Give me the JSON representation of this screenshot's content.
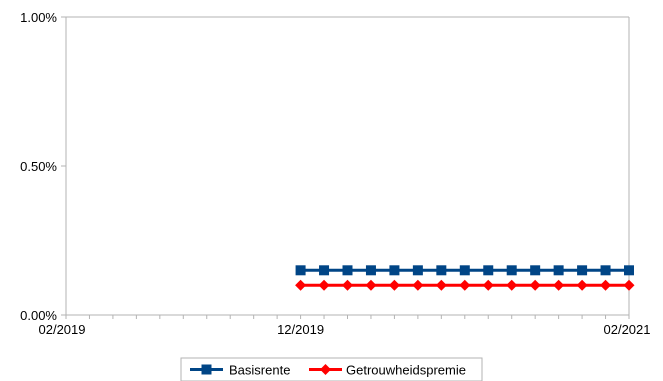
{
  "chart_data": {
    "type": "line",
    "title": "",
    "xlabel": "",
    "ylabel": "",
    "x": [
      "2019-12",
      "2020-01",
      "2020-02",
      "2020-03",
      "2020-04",
      "2020-05",
      "2020-06",
      "2020-07",
      "2020-08",
      "2020-09",
      "2020-10",
      "2020-11",
      "2020-12",
      "2021-01",
      "2021-02"
    ],
    "xlim": [
      "2019-02",
      "2021-02"
    ],
    "ylim": [
      0,
      1.0
    ],
    "y_tick_labels": [
      {
        "value": 0.0,
        "label": "0.00%"
      },
      {
        "value": 0.5,
        "label": "0.50%"
      },
      {
        "value": 1.0,
        "label": "1.00%"
      }
    ],
    "x_tick_labels": [
      {
        "value": "2019-02",
        "label": "02/2019"
      },
      {
        "value": "2019-12",
        "label": "12/2019"
      },
      {
        "value": "2021-02",
        "label": "02/2021"
      }
    ],
    "grid": false,
    "legend": "bottom",
    "series": [
      {
        "name": "Basisrente",
        "color": "#004586",
        "marker": "square",
        "values": [
          0.15,
          0.15,
          0.15,
          0.15,
          0.15,
          0.15,
          0.15,
          0.15,
          0.15,
          0.15,
          0.15,
          0.15,
          0.15,
          0.15,
          0.15
        ]
      },
      {
        "name": "Getrouwheidspremie",
        "color": "#ff0000",
        "marker": "diamond",
        "values": [
          0.1,
          0.1,
          0.1,
          0.1,
          0.1,
          0.1,
          0.1,
          0.1,
          0.1,
          0.1,
          0.1,
          0.1,
          0.1,
          0.1,
          0.1
        ]
      }
    ]
  }
}
